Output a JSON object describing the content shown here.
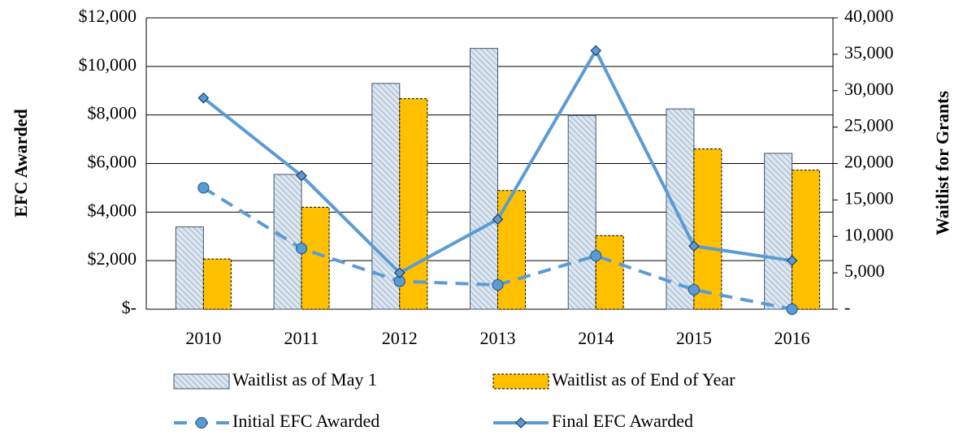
{
  "chart_data": {
    "type": "combo",
    "categories": [
      "2010",
      "2011",
      "2012",
      "2013",
      "2014",
      "2015",
      "2016"
    ],
    "y_label": "EFC Awarded",
    "y2_label": "Waitlist for  Grants",
    "ylim": [
      0,
      12000
    ],
    "yticks": [
      {
        "value": 0,
        "label": "$-"
      },
      {
        "value": 2000,
        "label": "$2,000"
      },
      {
        "value": 4000,
        "label": "$4,000"
      },
      {
        "value": 6000,
        "label": "$6,000"
      },
      {
        "value": 8000,
        "label": "$8,000"
      },
      {
        "value": 10000,
        "label": "$10,000"
      },
      {
        "value": 12000,
        "label": "$12,000"
      }
    ],
    "y2lim": [
      0,
      40000
    ],
    "y2ticks": [
      {
        "value": 0,
        "label": "-"
      },
      {
        "value": 5000,
        "label": "5,000"
      },
      {
        "value": 10000,
        "label": "10,000"
      },
      {
        "value": 15000,
        "label": "15,000"
      },
      {
        "value": 20000,
        "label": "20,000"
      },
      {
        "value": 25000,
        "label": "25,000"
      },
      {
        "value": 30000,
        "label": "30,000"
      },
      {
        "value": 35000,
        "label": "35,000"
      },
      {
        "value": 40000,
        "label": "40,000"
      }
    ],
    "grid": true,
    "series": [
      {
        "name": "Waitlist as of May 1",
        "type": "bar",
        "axis": "y2",
        "color": "#dce6f0",
        "pattern": "hatch",
        "values": [
          11300,
          18500,
          31000,
          35800,
          26600,
          27500,
          21400
        ]
      },
      {
        "name": "Waitlist as of End of Year",
        "type": "bar",
        "axis": "y2",
        "color": "#ffc000",
        "values": [
          6900,
          14000,
          28900,
          16300,
          10100,
          22000,
          19100
        ]
      },
      {
        "name": "Initial EFC Awarded",
        "type": "line",
        "axis": "y",
        "color": "#5b9bd5",
        "line_style": "dashed",
        "marker": "circle",
        "values": [
          5000,
          2500,
          1150,
          1000,
          2200,
          800,
          0
        ]
      },
      {
        "name": "Final EFC Awarded",
        "type": "line",
        "axis": "y",
        "color": "#5b9bd5",
        "line_style": "solid",
        "marker": "diamond",
        "values": [
          8700,
          5500,
          1500,
          3700,
          10650,
          2600,
          2000
        ]
      }
    ]
  }
}
